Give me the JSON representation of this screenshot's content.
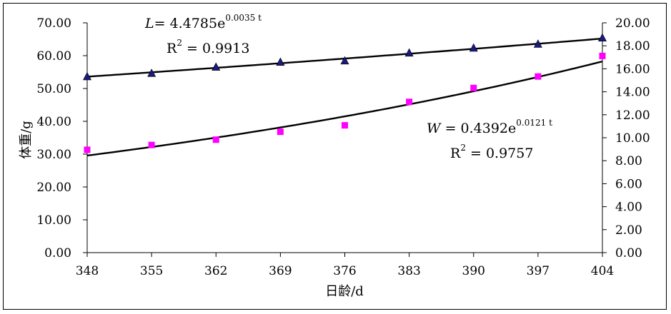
{
  "chart_data": {
    "type": "scatter",
    "x": [
      348,
      355,
      362,
      369,
      376,
      383,
      390,
      397,
      404
    ],
    "xlabel": "日龄/d",
    "ylabel": "体重/g",
    "xlim": [
      348,
      404
    ],
    "ylim": [
      0,
      70
    ],
    "y2lim": [
      0,
      20
    ],
    "x_ticks": [
      "348",
      "355",
      "362",
      "369",
      "376",
      "383",
      "390",
      "397",
      "404"
    ],
    "y_ticks": [
      "0.00",
      "10.00",
      "20.00",
      "30.00",
      "40.00",
      "50.00",
      "60.00",
      "70.00"
    ],
    "y2_ticks": [
      "0.00",
      "2.00",
      "4.00",
      "6.00",
      "8.00",
      "10.00",
      "12.00",
      "14.00",
      "16.00",
      "18.00",
      "20.00"
    ],
    "grid": false,
    "series": [
      {
        "axis": "left",
        "marker": "triangle",
        "color": "#1a1a80",
        "values": [
          53.6,
          54.6,
          56.5,
          58.0,
          58.4,
          60.8,
          62.3,
          63.5,
          65.4
        ],
        "fit": {
          "a": 53.6,
          "b": 0.0035
        }
      },
      {
        "axis": "right",
        "marker": "square",
        "color": "#ff00ff",
        "values": [
          8.95,
          9.37,
          9.83,
          10.52,
          11.08,
          13.12,
          14.33,
          15.33,
          17.12
        ],
        "fit": {
          "a": 8.45,
          "b": 0.0121
        }
      }
    ],
    "annotations": {
      "eq_L_lhs": "L",
      "eq_L_rhs": "=  4.4785e",
      "eq_L_exp": "0.0035 t",
      "r2_L_prefix": "R",
      "r2_L_exp": "2",
      "r2_L_value": " =  0.9913",
      "eq_W_lhs": "W",
      "eq_W_rhs": "  =  0.4392e",
      "eq_W_exp": "0.0121 t",
      "r2_W_prefix": "R",
      "r2_W_exp": "2",
      "r2_W_value": "  =  0.9757"
    }
  }
}
